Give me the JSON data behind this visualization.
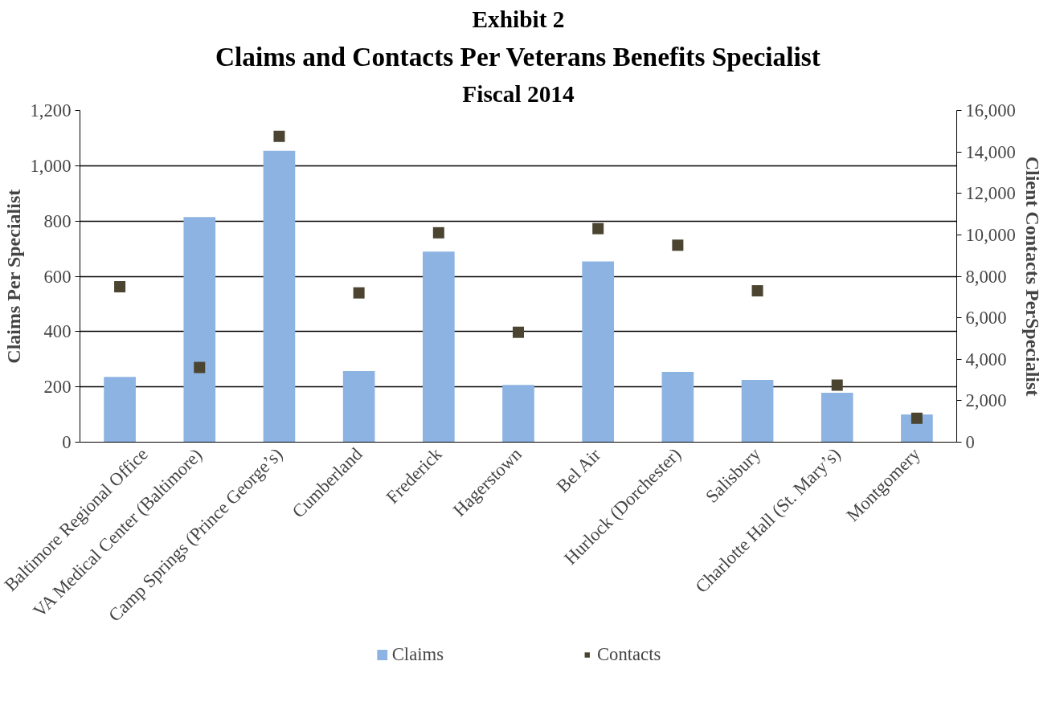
{
  "chart_data": {
    "type": "bar",
    "title": "Claims and Contacts Per Veterans Benefits Specialist",
    "subtitle": "Fiscal 2014",
    "annotations": [
      "Exhibit 2"
    ],
    "ylabel": "Claims Per Specialist",
    "y2label": "Client Contacts PerSpecialist",
    "categories": [
      "Baltimore Regional Office",
      "VA Medical Center (Baltimore)",
      "Camp Springs (Prince George’s)",
      "Cumberland",
      "Frederick",
      "Hagerstown",
      "Bel Air",
      "Hurlock (Dorchester)",
      "Salisbury",
      "Charlotte Hall (St. Mary’s)",
      "Montgomery"
    ],
    "series": [
      {
        "name": "Claims",
        "type": "bar",
        "color": "#8db3e2",
        "values": [
          236,
          814,
          1054,
          257,
          689,
          207,
          654,
          254,
          225,
          179,
          100
        ]
      },
      {
        "name": "Contacts",
        "type": "scatter",
        "axis": "y2",
        "marker": "square",
        "color": "#4a4430",
        "values": [
          7500,
          3600,
          14750,
          7200,
          10100,
          5300,
          10300,
          9500,
          7300,
          2750,
          1150
        ]
      }
    ],
    "ylim": [
      0,
      1200
    ],
    "yticks": [
      0,
      200,
      400,
      600,
      800,
      {
        "value": 1000,
        "label": "1,000"
      },
      {
        "value": 1200,
        "label": "1,200"
      }
    ],
    "y2lim": [
      0,
      16000
    ],
    "y2ticks": [
      0,
      {
        "value": 2000,
        "label": "2,000"
      },
      {
        "value": 4000,
        "label": "4,000"
      },
      {
        "value": 6000,
        "label": "6,000"
      },
      {
        "value": 8000,
        "label": "8,000"
      },
      {
        "value": 10000,
        "label": "10,000"
      },
      {
        "value": 12000,
        "label": "12,000"
      },
      {
        "value": 14000,
        "label": "14,000"
      },
      {
        "value": 16000,
        "label": "16,000"
      }
    ],
    "grid": "y",
    "legend": "bottom"
  }
}
